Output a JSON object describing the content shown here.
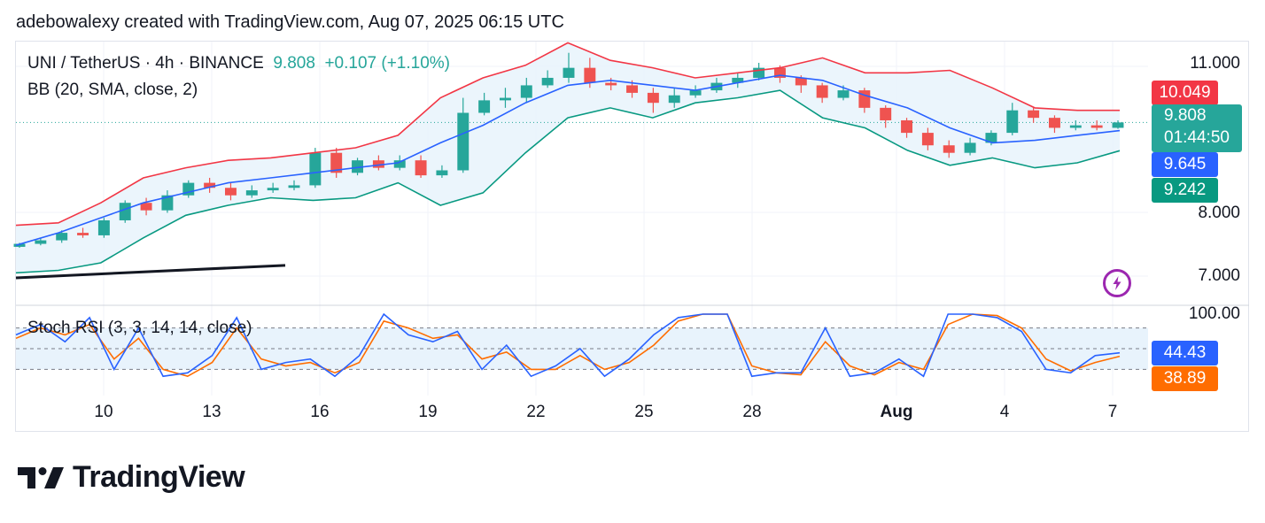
{
  "caption": "adebowalexy created with TradingView.com, Aug 07, 2025 06:15 UTC",
  "legend": {
    "symbol": "UNI / TetherUS · 4h · BINANCE",
    "price": "9.808",
    "change": "+0.107 (+1.10%)",
    "bb": "BB (20, SMA, close, 2)",
    "stoch": "Stoch RSI (3, 3, 14, 14, close)"
  },
  "colors": {
    "up": "#26a69a",
    "down": "#ef5350",
    "bb_upper": "#f23645",
    "bb_basis": "#2962ff",
    "bb_lower": "#089981",
    "k_line": "#2962ff",
    "d_line": "#ff6d00",
    "band_fill": "#e8f3fc"
  },
  "price_axis": {
    "labels": [
      "11.000",
      "8.000",
      "7.000"
    ]
  },
  "price_tags": {
    "upper": "10.049",
    "last_price": "9.808",
    "countdown": "01:44:50",
    "basis": "9.645",
    "lower": "9.242"
  },
  "stoch_axis": {
    "top_label": "100.00"
  },
  "stoch_tags": {
    "k": "44.43",
    "d": "38.89"
  },
  "x_labels": [
    "10",
    "13",
    "16",
    "19",
    "22",
    "25",
    "28",
    "Aug",
    "4",
    "7"
  ],
  "logo_text": "TradingView",
  "chart_data": {
    "type": "candlestick",
    "title": "UNI / TetherUS · 4h · BINANCE",
    "timeframe": "4h",
    "x_ticks": [
      "10",
      "13",
      "16",
      "19",
      "22",
      "25",
      "28",
      "Aug",
      "4",
      "7"
    ],
    "price_ticks": [
      11.0,
      8.0,
      7.0
    ],
    "last": 9.808,
    "change": 0.107,
    "change_pct": 1.1,
    "bollinger": {
      "params": "20, SMA, close, 2",
      "current": {
        "upper": 10.049,
        "basis": 9.645,
        "lower": 9.242
      },
      "upper": [
        7.75,
        7.8,
        8.2,
        8.7,
        8.9,
        9.05,
        9.1,
        9.2,
        9.3,
        9.55,
        10.3,
        10.7,
        10.95,
        11.4,
        11.05,
        10.9,
        10.7,
        10.8,
        10.9,
        11.1,
        10.8,
        10.8,
        10.85,
        10.5,
        10.1,
        10.05,
        10.05
      ],
      "basis": [
        7.35,
        7.6,
        7.9,
        8.2,
        8.4,
        8.6,
        8.7,
        8.8,
        8.9,
        9.0,
        9.4,
        9.75,
        10.2,
        10.55,
        10.65,
        10.55,
        10.45,
        10.6,
        10.75,
        10.65,
        10.35,
        10.1,
        9.7,
        9.4,
        9.45,
        9.55,
        9.645
      ],
      "lower": [
        6.8,
        6.85,
        7.0,
        7.5,
        7.95,
        8.15,
        8.3,
        8.25,
        8.3,
        8.6,
        8.15,
        8.4,
        9.2,
        9.9,
        10.1,
        9.9,
        10.2,
        10.3,
        10.45,
        9.9,
        9.7,
        9.25,
        8.95,
        9.1,
        8.9,
        9.0,
        9.242
      ]
    },
    "trendline": {
      "from": 6.7,
      "to": 6.95
    },
    "candles": [
      [
        7.32,
        7.38,
        7.3,
        7.4
      ],
      [
        7.38,
        7.45,
        7.35,
        7.5
      ],
      [
        7.45,
        7.6,
        7.4,
        7.65
      ],
      [
        7.6,
        7.55,
        7.5,
        7.7
      ],
      [
        7.55,
        7.85,
        7.5,
        7.9
      ],
      [
        7.85,
        8.2,
        7.8,
        8.25
      ],
      [
        8.2,
        8.05,
        7.95,
        8.3
      ],
      [
        8.05,
        8.35,
        8.0,
        8.45
      ],
      [
        8.35,
        8.6,
        8.3,
        8.65
      ],
      [
        8.6,
        8.5,
        8.4,
        8.7
      ],
      [
        8.5,
        8.35,
        8.25,
        8.6
      ],
      [
        8.35,
        8.45,
        8.3,
        8.55
      ],
      [
        8.45,
        8.5,
        8.4,
        8.6
      ],
      [
        8.5,
        8.55,
        8.45,
        8.65
      ],
      [
        8.55,
        9.2,
        8.5,
        9.3
      ],
      [
        9.2,
        8.8,
        8.7,
        9.3
      ],
      [
        8.8,
        9.05,
        8.75,
        9.1
      ],
      [
        9.05,
        8.9,
        8.85,
        9.15
      ],
      [
        8.9,
        9.05,
        8.85,
        9.15
      ],
      [
        9.05,
        8.75,
        8.7,
        9.15
      ],
      [
        8.75,
        8.85,
        8.7,
        8.95
      ],
      [
        8.85,
        10.0,
        8.8,
        10.3
      ],
      [
        10.0,
        10.25,
        9.95,
        10.4
      ],
      [
        10.25,
        10.3,
        10.1,
        10.5
      ],
      [
        10.3,
        10.55,
        10.2,
        10.7
      ],
      [
        10.55,
        10.7,
        10.5,
        10.85
      ],
      [
        10.7,
        10.9,
        10.6,
        11.2
      ],
      [
        10.9,
        10.6,
        10.5,
        11.1
      ],
      [
        10.6,
        10.55,
        10.45,
        10.7
      ],
      [
        10.55,
        10.4,
        10.3,
        10.65
      ],
      [
        10.4,
        10.2,
        10.0,
        10.5
      ],
      [
        10.2,
        10.35,
        10.1,
        10.5
      ],
      [
        10.35,
        10.45,
        10.3,
        10.55
      ],
      [
        10.45,
        10.6,
        10.4,
        10.7
      ],
      [
        10.6,
        10.7,
        10.5,
        10.8
      ],
      [
        10.7,
        10.9,
        10.65,
        11.0
      ],
      [
        10.9,
        10.7,
        10.6,
        10.95
      ],
      [
        10.7,
        10.55,
        10.4,
        10.75
      ],
      [
        10.55,
        10.3,
        10.2,
        10.6
      ],
      [
        10.3,
        10.45,
        10.25,
        10.55
      ],
      [
        10.45,
        10.1,
        10.0,
        10.5
      ],
      [
        10.1,
        9.85,
        9.7,
        10.15
      ],
      [
        9.85,
        9.6,
        9.5,
        9.9
      ],
      [
        9.6,
        9.35,
        9.25,
        9.7
      ],
      [
        9.35,
        9.2,
        9.1,
        9.45
      ],
      [
        9.2,
        9.4,
        9.15,
        9.5
      ],
      [
        9.4,
        9.6,
        9.35,
        9.65
      ],
      [
        9.6,
        10.05,
        9.55,
        10.2
      ],
      [
        10.05,
        9.9,
        9.8,
        10.1
      ],
      [
        9.9,
        9.7,
        9.6,
        9.95
      ],
      [
        9.7,
        9.75,
        9.65,
        9.85
      ],
      [
        9.75,
        9.7,
        9.65,
        9.85
      ],
      [
        9.7,
        9.808,
        9.68,
        9.85
      ]
    ],
    "stoch_rsi": {
      "params": "3, 3, 14, 14, close",
      "k_current": 44.43,
      "d_current": 38.89,
      "levels": [
        80,
        50,
        20
      ],
      "ylim": [
        0,
        100
      ],
      "k": [
        70,
        85,
        60,
        95,
        20,
        80,
        10,
        15,
        40,
        95,
        20,
        30,
        35,
        10,
        40,
        100,
        70,
        60,
        75,
        20,
        55,
        10,
        25,
        50,
        10,
        35,
        70,
        95,
        100,
        100,
        10,
        15,
        15,
        80,
        10,
        15,
        35,
        10,
        100,
        100,
        95,
        75,
        20,
        15,
        40,
        44
      ],
      "d": [
        65,
        80,
        70,
        85,
        35,
        65,
        20,
        10,
        30,
        80,
        35,
        25,
        30,
        15,
        30,
        90,
        80,
        65,
        70,
        35,
        45,
        20,
        20,
        40,
        20,
        30,
        55,
        90,
        100,
        100,
        25,
        15,
        12,
        60,
        25,
        12,
        30,
        20,
        85,
        100,
        98,
        80,
        35,
        18,
        30,
        39
      ]
    }
  }
}
